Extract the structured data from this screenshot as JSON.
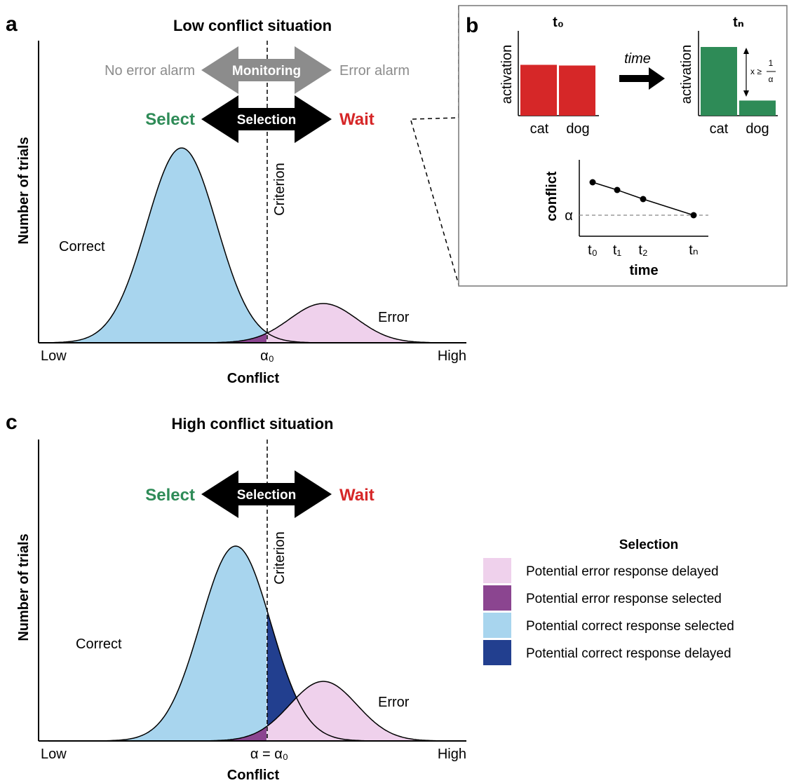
{
  "colors": {
    "correct_selected": "#a8d5ee",
    "correct_delayed": "#223f8f",
    "error_selected": "#8b4590",
    "error_delayed": "#efd1ec",
    "select_green": "#2e8b57",
    "wait_red": "#d62728",
    "monitor_grey": "#8c8c8c",
    "bar_red": "#d62728",
    "bar_green": "#2e8b57"
  },
  "panel_a": {
    "letter": "a",
    "title": "Low conflict situation",
    "ylabel": "Number of trials",
    "xlabel": "Conflict",
    "x_low": "Low",
    "x_high": "High",
    "criterion_tick": "α₀",
    "criterion_label": "Criterion",
    "correct_label": "Correct",
    "error_label": "Error",
    "monitoring": {
      "left": "No error alarm",
      "center": "Monitoring",
      "right": "Error alarm"
    },
    "selection": {
      "left": "Select",
      "center": "Selection",
      "right": "Wait"
    }
  },
  "panel_b": {
    "letter": "b",
    "t0_title": "t₀",
    "tn_title": "tₙ",
    "time_arrow": "time",
    "activation_label": "activation",
    "categories": [
      "cat",
      "dog"
    ],
    "t0_values": [
      0.74,
      0.73
    ],
    "tn_values": [
      1.0,
      0.22
    ],
    "formula": {
      "lhs": "x ≥",
      "num": "1",
      "den": "α"
    },
    "conflict_plot": {
      "ylabel": "conflict",
      "xlabel": "time",
      "alpha_label": "α",
      "x_ticks": [
        "t₀",
        "t₁",
        "t₂",
        "tₙ"
      ]
    }
  },
  "panel_c": {
    "letter": "c",
    "title": "High conflict situation",
    "ylabel": "Number of trials",
    "xlabel": "Conflict",
    "x_low": "Low",
    "x_high": "High",
    "criterion_tick": "α = α₀",
    "criterion_label": "Criterion",
    "correct_label": "Correct",
    "error_label": "Error",
    "selection": {
      "left": "Select",
      "center": "Selection",
      "right": "Wait"
    }
  },
  "legend": {
    "title": "Selection",
    "items": [
      {
        "label": "Potential error response delayed",
        "color": "#efd1ec"
      },
      {
        "label": "Potential error response selected",
        "color": "#8b4590"
      },
      {
        "label": "Potential correct response selected",
        "color": "#a8d5ee"
      },
      {
        "label": "Potential correct response delayed",
        "color": "#223f8f"
      }
    ]
  }
}
